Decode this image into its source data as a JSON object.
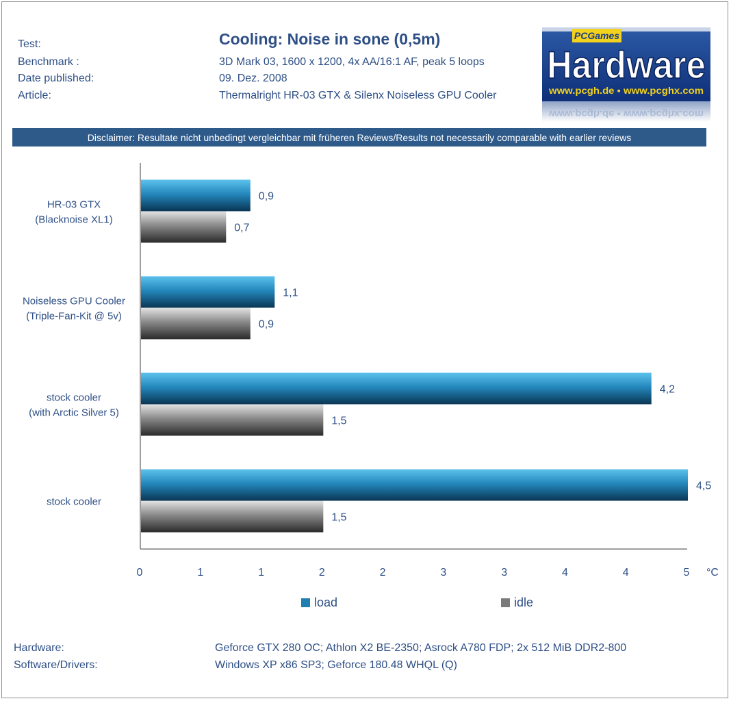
{
  "header": {
    "test_label": "Test:",
    "benchmark_label": "Benchmark :",
    "date_label": "Date published:",
    "article_label": "Article:",
    "benchmark_value": "3D Mark 03, 1600 x 1200, 4x AA/16:1 AF, peak 5 loops",
    "date_value": "09. Dez. 2008",
    "article_value": "Thermalright HR-03 GTX & Silenx Noiseless GPU Cooler"
  },
  "logo": {
    "top_text": "PCGames",
    "main_text": "Hardware",
    "url_text": "www.pcgh.de ▪ www.pcghx.com"
  },
  "disclaimer": "Disclaimer: Resultate nicht unbedingt vergleichbar mit früheren  Reviews/Results not necessarily comparable with earlier reviews",
  "footer": {
    "hardware_label": "Hardware:",
    "hardware_value": "Geforce GTX 280 OC; Athlon X2 BE-2350; Asrock A780 FDP; 2x 512 MiB DDR2-800",
    "software_label": "Software/Drivers:",
    "software_value": "Windows XP x86 SP3; Geforce 180.48 WHQL (Q)"
  },
  "colors": {
    "text": "#2e4f86",
    "load": "#1e7fb0",
    "idle": "#7a7a7a",
    "disclaimer_bg": "#2e5a8a"
  },
  "chart_data": {
    "type": "bar",
    "orientation": "horizontal",
    "title": "Cooling: Noise in sone (0,5m)",
    "unit": "°C",
    "categories": [
      [
        "HR-03 GTX",
        "(Blacknoise XL1)"
      ],
      [
        "Noiseless GPU Cooler",
        "(Triple-Fan-Kit @ 5v)"
      ],
      [
        "stock cooler",
        "(with Arctic Silver 5)"
      ],
      [
        "stock cooler"
      ]
    ],
    "series": [
      {
        "name": "load",
        "values": [
          0.9,
          1.1,
          4.2,
          4.5
        ],
        "labels": [
          "0,9",
          "1,1",
          "4,2",
          "4,5"
        ]
      },
      {
        "name": "idle",
        "values": [
          0.7,
          0.9,
          1.5,
          1.5
        ],
        "labels": [
          "0,7",
          "0,9",
          "1,5",
          "1,5"
        ]
      }
    ],
    "x_ticks": [
      "0",
      "1",
      "1",
      "2",
      "2",
      "3",
      "3",
      "4",
      "4",
      "5"
    ],
    "xlim": [
      0,
      4.5
    ],
    "grid": false,
    "legend": "bottom"
  }
}
